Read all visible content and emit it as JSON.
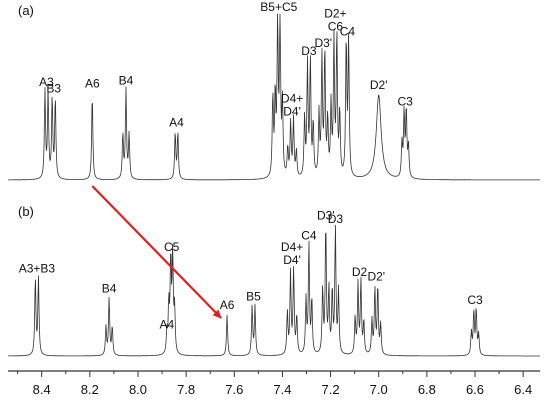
{
  "chart_data": [
    {
      "type": "line",
      "panel": "(a)",
      "x_axis": "shared",
      "spectrum": "1H NMR",
      "peaks": [
        {
          "label": "A3",
          "x": 8.38,
          "height": 0.54,
          "shape": "doublet",
          "sep": 0.013
        },
        {
          "label": "B3",
          "x": 8.35,
          "height": 0.5,
          "shape": "doublet",
          "sep": 0.013
        },
        {
          "label": "A6",
          "x": 8.19,
          "height": 0.53,
          "shape": "singlet"
        },
        {
          "label": "B4",
          "x": 8.05,
          "height": 0.55,
          "shape": "triplet",
          "sep": 0.013
        },
        {
          "label": "A4",
          "x": 7.84,
          "height": 0.29,
          "shape": "doublet",
          "sep": 0.011
        },
        {
          "label": "",
          "x": 7.44,
          "height": 0.5,
          "shape": "singlet"
        },
        {
          "label": "B5+C5",
          "x": 7.415,
          "height": 1.0,
          "shape": "multiplet",
          "sep": 0.01
        },
        {
          "label": "D4+D4'",
          "x": 7.36,
          "height": 0.36,
          "shape": "multiplet",
          "sep": 0.012
        },
        {
          "label": "D3",
          "x": 7.29,
          "height": 0.73,
          "shape": "multiplet",
          "sep": 0.012
        },
        {
          "label": "D3'",
          "x": 7.23,
          "height": 0.78,
          "shape": "multiplet",
          "sep": 0.012
        },
        {
          "label": "D2+C6",
          "x": 7.18,
          "height": 0.88,
          "shape": "multiplet",
          "sep": 0.012
        },
        {
          "label": "C4",
          "x": 7.13,
          "height": 0.85,
          "shape": "doublet",
          "sep": 0.01
        },
        {
          "label": "D2'",
          "x": 7.0,
          "height": 0.52,
          "shape": "broad"
        },
        {
          "label": "C3",
          "x": 6.89,
          "height": 0.42,
          "shape": "multiplet",
          "sep": 0.009
        }
      ]
    },
    {
      "type": "line",
      "panel": "(b)",
      "x_axis": "shared",
      "peaks": [
        {
          "label": "A3+B3",
          "x": 8.42,
          "height": 0.47,
          "shape": "doublet",
          "sep": 0.013
        },
        {
          "label": "B4",
          "x": 8.12,
          "height": 0.35,
          "shape": "triplet",
          "sep": 0.013
        },
        {
          "label": "A4",
          "x": 7.88,
          "height": 0.13,
          "shape": "singlet"
        },
        {
          "label": "C5",
          "x": 7.86,
          "height": 0.6,
          "shape": "multiplet",
          "sep": 0.008
        },
        {
          "label": "A6",
          "x": 7.63,
          "height": 0.25,
          "shape": "singlet"
        },
        {
          "label": "B5",
          "x": 7.52,
          "height": 0.3,
          "shape": "doublet",
          "sep": 0.012
        },
        {
          "label": "D4+D4'",
          "x": 7.36,
          "height": 0.52,
          "shape": "multiplet",
          "sep": 0.013
        },
        {
          "label": "C4",
          "x": 7.29,
          "height": 0.67,
          "shape": "triplet",
          "sep": 0.012
        },
        {
          "label": "D3'",
          "x": 7.22,
          "height": 0.79,
          "shape": "triplet",
          "sep": 0.013
        },
        {
          "label": "D3",
          "x": 7.18,
          "height": 0.77,
          "shape": "triplet",
          "sep": 0.013
        },
        {
          "label": "D2",
          "x": 7.08,
          "height": 0.45,
          "shape": "multiplet",
          "sep": 0.012
        },
        {
          "label": "D2'",
          "x": 7.01,
          "height": 0.42,
          "shape": "multiplet",
          "sep": 0.012
        },
        {
          "label": "C3",
          "x": 6.6,
          "height": 0.28,
          "shape": "multiplet",
          "sep": 0.01
        }
      ]
    }
  ],
  "x_axis": {
    "range": [
      8.54,
      6.33
    ],
    "reversed": true,
    "ticks": [
      "8.4",
      "8.2",
      "8.0",
      "7.8",
      "7.6",
      "7.4",
      "7.2",
      "7.0",
      "6.8",
      "6.6",
      "6.4"
    ],
    "tick_values": [
      8.4,
      8.2,
      8.0,
      7.8,
      7.6,
      7.4,
      7.2,
      7.0,
      6.8,
      6.6,
      6.4
    ]
  },
  "panel_labels": [
    "(a)",
    "(b)"
  ],
  "arrow": {
    "from_ppm": 8.19,
    "to_ppm": 7.63,
    "from_panel": "(a)",
    "to_panel": "(b)",
    "color": "#e02020"
  },
  "colors": {
    "trace": "#333333",
    "arrow": "#e02020"
  }
}
